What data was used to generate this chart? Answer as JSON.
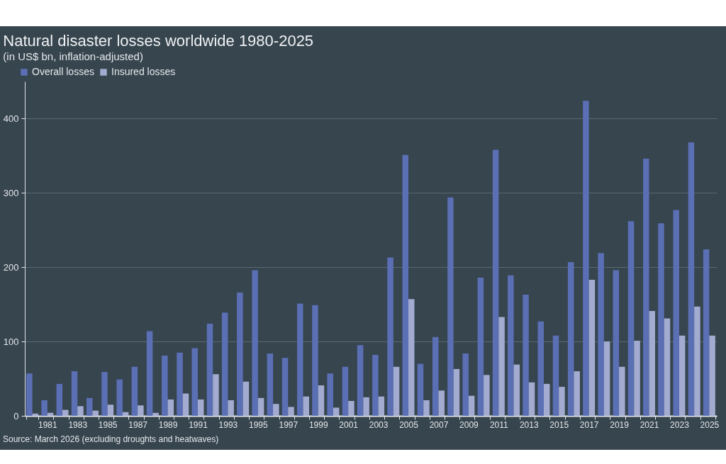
{
  "chart_data": {
    "type": "bar",
    "title": "Natural disaster losses worldwide 1980-2025",
    "subtitle": "(in US$ bn, inflation-adjusted)",
    "categories": [
      null,
      "1981",
      null,
      "1983",
      null,
      "1985",
      null,
      "1987",
      null,
      "1989",
      null,
      "1991",
      null,
      "1993",
      null,
      "1995",
      null,
      "1997",
      null,
      "1999",
      null,
      "2001",
      null,
      "2003",
      null,
      "2005",
      null,
      "2007",
      null,
      "2009",
      null,
      "2011",
      null,
      "2013",
      null,
      "2015",
      null,
      "2017",
      null,
      "2019",
      null,
      "2021",
      null,
      "2023",
      null,
      "2025"
    ],
    "series": [
      {
        "name": "Overall losses",
        "color": "#5b6fb5",
        "values": [
          57,
          21,
          43,
          60,
          24,
          59,
          49,
          66,
          114,
          81,
          85,
          91,
          124,
          139,
          166,
          196,
          84,
          78,
          151,
          149,
          57,
          66,
          95,
          82,
          213,
          351,
          70,
          106,
          294,
          84,
          186,
          358,
          189,
          163,
          127,
          108,
          207,
          424,
          219,
          196,
          262,
          346,
          259,
          277,
          368,
          224
        ]
      },
      {
        "name": "Insured losses",
        "color": "#a3acd0",
        "values": [
          3,
          4,
          8,
          13,
          7,
          15,
          5,
          14,
          4,
          22,
          30,
          22,
          56,
          21,
          46,
          24,
          16,
          12,
          26,
          41,
          11,
          20,
          25,
          26,
          66,
          157,
          21,
          34,
          63,
          27,
          55,
          133,
          69,
          45,
          43,
          39,
          60,
          183,
          100,
          66,
          101,
          141,
          131,
          108,
          147,
          108
        ]
      }
    ],
    "ylim": [
      0,
      450
    ],
    "yticks": [
      0,
      100,
      200,
      300,
      400
    ],
    "grid": "y",
    "legend": "top left",
    "annotations": [
      "Source: March 2026 (excluding droughts and heatwaves)"
    ]
  }
}
